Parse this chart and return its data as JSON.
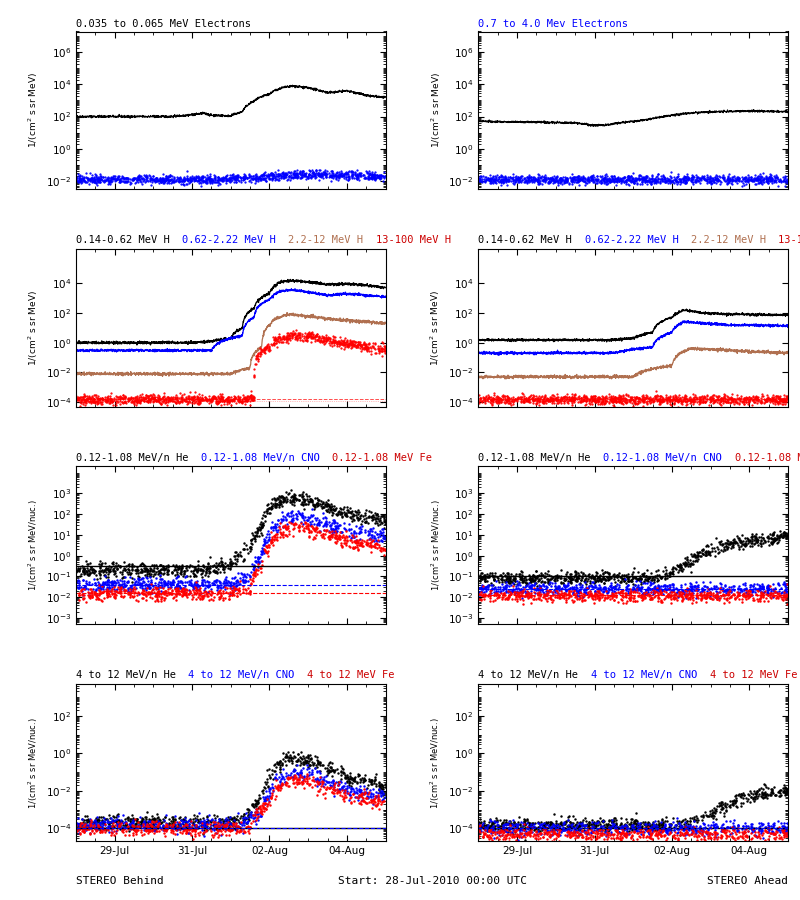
{
  "title_row1_left": "0.035 to 0.065 MeV Electrons",
  "title_row1_right": "0.7 to 4.0 Mev Electrons",
  "title_row2_parts": [
    "0.14-0.62 MeV H",
    "0.62-2.22 MeV H",
    "2.2-12 MeV H",
    "13-100 MeV H"
  ],
  "title_row2_colors": [
    "black",
    "#0000ff",
    "#b07050",
    "#cc0000"
  ],
  "title_row3_parts": [
    "0.12-1.08 MeV/n He",
    "0.12-1.08 MeV/n CNO",
    "0.12-1.08 MeV Fe"
  ],
  "title_row3_colors": [
    "black",
    "#0000ff",
    "#cc0000"
  ],
  "title_row4_parts": [
    "4 to 12 MeV/n He",
    "4 to 12 MeV/n CNO",
    "4 to 12 MeV Fe"
  ],
  "title_row4_colors": [
    "black",
    "#0000ff",
    "#cc0000"
  ],
  "xlabel_left": "STEREO Behind",
  "xlabel_center": "Start: 28-Jul-2010 00:00 UTC",
  "xlabel_right": "STEREO Ahead",
  "xtick_labels": [
    "29-Jul",
    "31-Jul",
    "02-Aug",
    "04-Aug"
  ],
  "xtick_pos": [
    1,
    3,
    5,
    7
  ],
  "ndays": 8,
  "seed": 42,
  "bg_color": "#ffffff"
}
